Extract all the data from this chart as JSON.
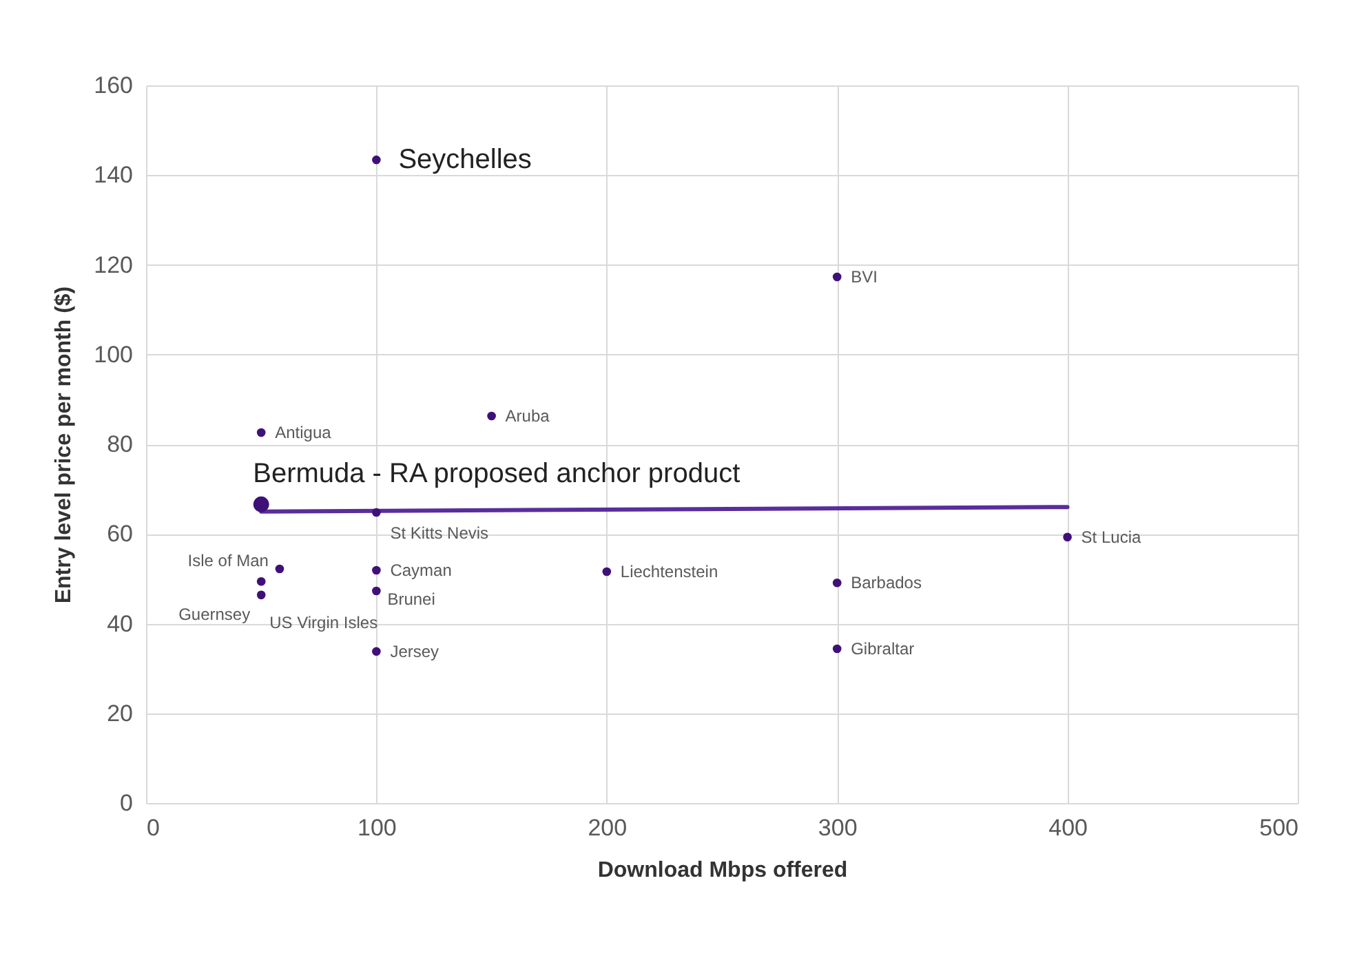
{
  "chart_data": {
    "type": "scatter",
    "xlabel": "Download Mbps offered",
    "ylabel": "Entry level price per month ($)",
    "xlim": [
      0,
      500
    ],
    "xticks": [
      0,
      100,
      200,
      300,
      400,
      500
    ],
    "ylim": [
      0,
      160
    ],
    "yticks": [
      0,
      20,
      40,
      60,
      80,
      100,
      120,
      140,
      160
    ],
    "grid": true,
    "marker": "circle",
    "series": [
      {
        "type": "line",
        "marker": "none",
        "color": "#5a2d9c",
        "x": [
          50,
          400
        ],
        "values": [
          65,
          66
        ]
      },
      {
        "color": "#3f1178",
        "x": [
          100,
          300,
          150,
          50,
          100,
          400,
          58,
          100,
          200,
          300,
          50,
          50,
          100,
          100,
          300
        ],
        "values": [
          143.4,
          117.3,
          86.3,
          82.6,
          64.8,
          59.3,
          52.2,
          51.9,
          51.6,
          49.1,
          46.4,
          49.4,
          47.3,
          33.8,
          34.4
        ]
      },
      {
        "color": "#3f1178",
        "x": [
          50
        ],
        "values": [
          66.6
        ]
      }
    ],
    "annotations": [
      {
        "text": "Seychelles",
        "x": 100,
        "y": 143.4
      },
      {
        "text": "BVI",
        "x": 300,
        "y": 117.3
      },
      {
        "text": "Aruba",
        "x": 150,
        "y": 86.3
      },
      {
        "text": "Antigua",
        "x": 50,
        "y": 82.6
      },
      {
        "text": "Bermuda - RA proposed anchor product",
        "x": 50,
        "y": 66.6
      },
      {
        "text": "St Kitts Nevis",
        "x": 100,
        "y": 64.8
      },
      {
        "text": "St Lucia",
        "x": 400,
        "y": 59.3
      },
      {
        "text": "Isle of Man",
        "x": 58,
        "y": 52.2
      },
      {
        "text": "Cayman",
        "x": 100,
        "y": 51.9
      },
      {
        "text": "Liechtenstein",
        "x": 200,
        "y": 51.6
      },
      {
        "text": "Barbados",
        "x": 300,
        "y": 49.1
      },
      {
        "text": "Guernsey",
        "x": 50,
        "y": 46.4
      },
      {
        "text": "US Virgin Isles",
        "x": 50,
        "y": 49.4
      },
      {
        "text": "Brunei",
        "x": 100,
        "y": 47.3
      },
      {
        "text": "Jersey",
        "x": 100,
        "y": 33.8
      },
      {
        "text": "Gibraltar",
        "x": 300,
        "y": 34.4
      }
    ]
  }
}
